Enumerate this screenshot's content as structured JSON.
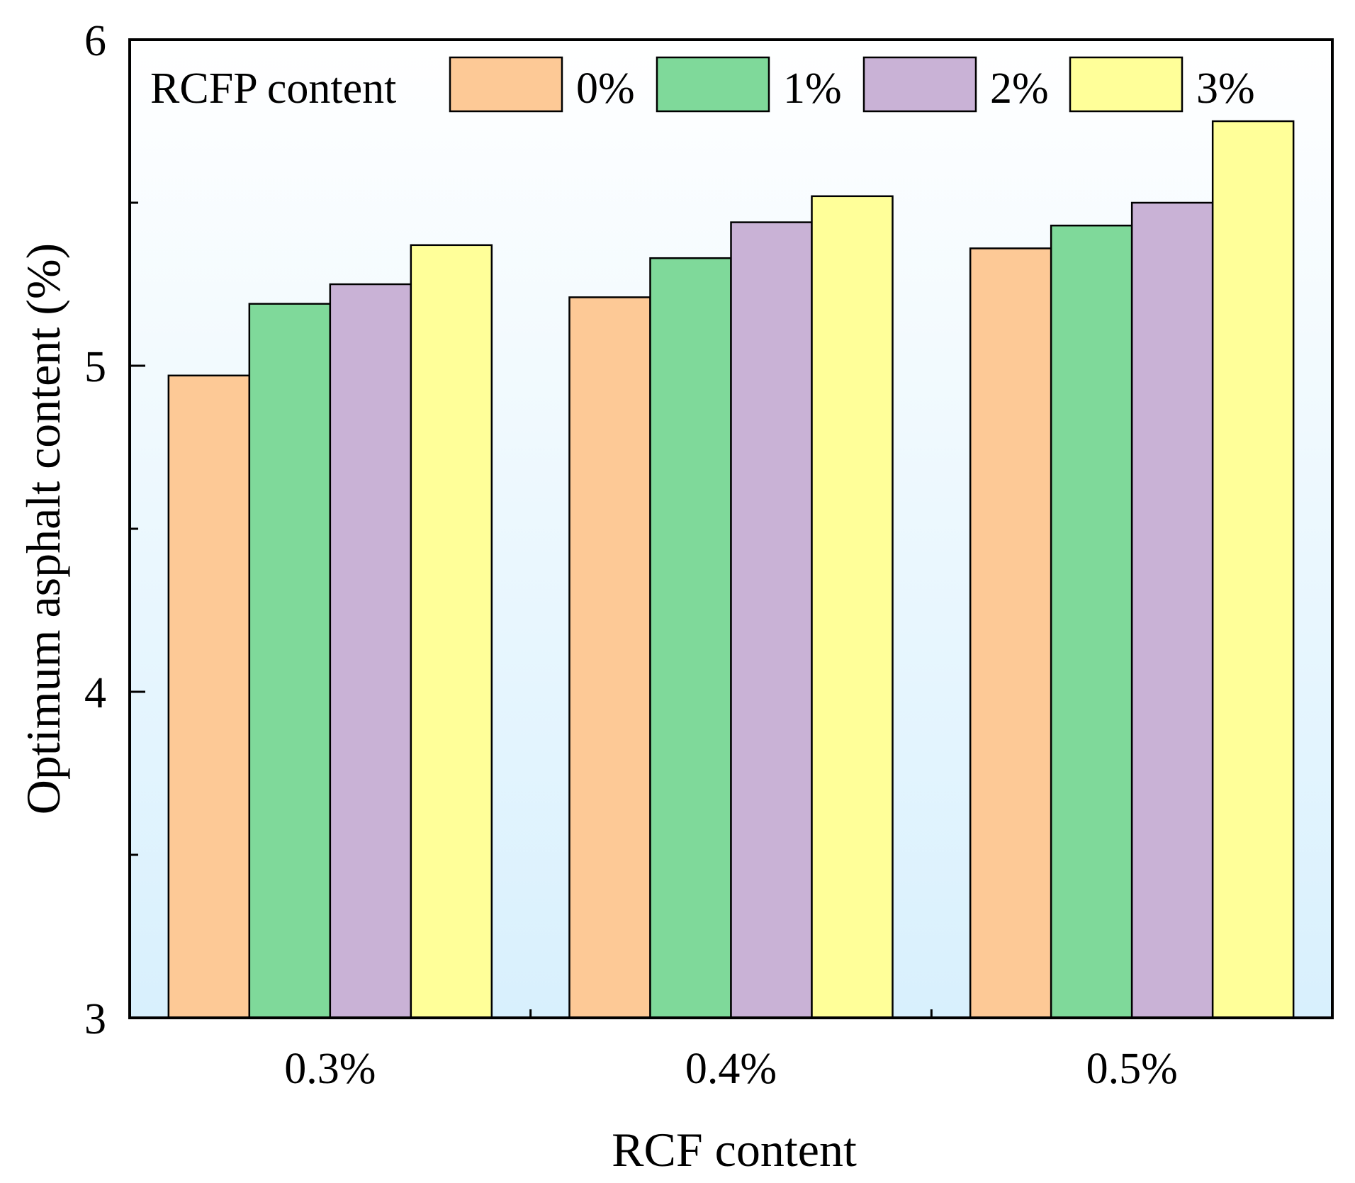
{
  "chart_data": {
    "type": "bar",
    "xlabel": "RCF content",
    "ylabel": "Optimum asphalt content (%)",
    "categories": [
      "0.3%",
      "0.4%",
      "0.5%"
    ],
    "ylim": [
      3,
      6
    ],
    "y_ticks": [
      3,
      4,
      5,
      6
    ],
    "y_tick_labels": [
      "3",
      "4",
      "5",
      "6"
    ],
    "legend_title": "RCFP content",
    "legend_position": "top",
    "series": [
      {
        "name": "0%",
        "color": "#FDC996",
        "values": [
          4.97,
          5.21,
          5.36
        ]
      },
      {
        "name": "1%",
        "color": "#7FD99A",
        "values": [
          5.19,
          5.33,
          5.43
        ]
      },
      {
        "name": "2%",
        "color": "#C9B2D6",
        "values": [
          5.25,
          5.44,
          5.5
        ]
      },
      {
        "name": "3%",
        "color": "#FFFF99",
        "values": [
          5.37,
          5.52,
          5.75
        ]
      }
    ],
    "background_gradient": [
      "#FFFFFF",
      "#D8F0FD"
    ]
  }
}
